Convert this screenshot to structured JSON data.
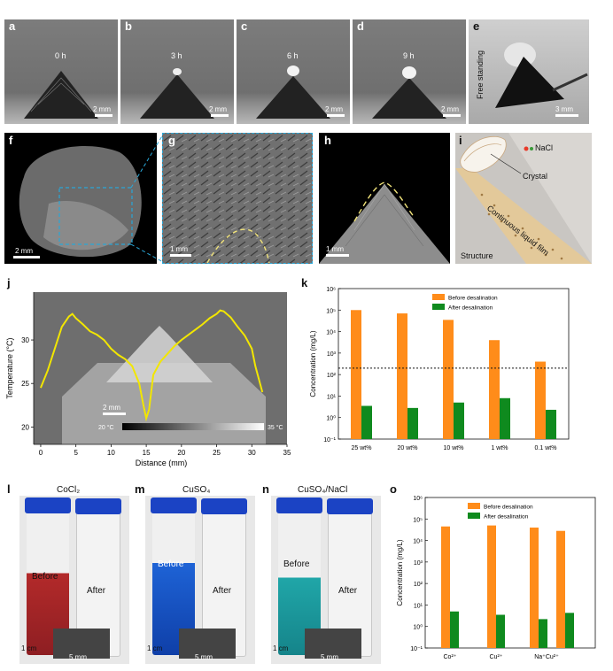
{
  "labels": {
    "a": "a",
    "b": "b",
    "c": "c",
    "d": "d",
    "e": "e",
    "f": "f",
    "g": "g",
    "h": "h",
    "i": "i",
    "j": "j",
    "k": "k",
    "l": "l",
    "m": "m",
    "n": "n",
    "o": "o"
  },
  "row1": {
    "times": [
      "0 h",
      "3 h",
      "6 h",
      "9 h"
    ],
    "scale": "2 mm",
    "e_side": "Free standing",
    "e_scale": "3 mm"
  },
  "row2": {
    "f_scale": "2 mm",
    "g_scale": "1 mm",
    "h_scale": "1 mm",
    "i_nacl": "NaCl",
    "i_crystal": "Crystal",
    "i_film": "Continuous liquid film",
    "i_structure": "Structure"
  },
  "panel_j": {
    "ylabel": "Temperature (°C)",
    "xlabel": "Distance (mm)",
    "xticks": [
      "0",
      "5",
      "10",
      "15",
      "20",
      "25",
      "30",
      "35"
    ],
    "yticks": [
      "20",
      "25",
      "30"
    ],
    "scale": "2 mm",
    "cbar_min": "20 °C",
    "cbar_max": "35 °C",
    "colors": {
      "curve": "#f2e600"
    }
  },
  "chart_data": [
    {
      "panel": "j",
      "type": "line",
      "xlabel": "Distance (mm)",
      "ylabel": "Temperature (°C)",
      "xlim": [
        -1,
        35
      ],
      "ylim": [
        18,
        35.5
      ],
      "x": [
        0,
        1,
        2,
        3,
        4,
        4.5,
        5,
        6,
        7,
        8,
        9,
        10,
        11,
        12,
        13,
        14,
        14.6,
        15,
        15.4,
        16,
        17,
        18,
        19,
        20,
        21,
        22,
        23,
        24,
        25,
        25.5,
        26,
        27,
        28,
        29,
        30,
        30.5,
        31.5
      ],
      "y": [
        24.5,
        26.5,
        29.0,
        31.5,
        32.7,
        33.0,
        32.5,
        31.8,
        31.0,
        30.6,
        30.0,
        29.0,
        28.3,
        27.8,
        27.0,
        25.0,
        22.5,
        21.0,
        22.0,
        26.0,
        27.5,
        28.4,
        29.3,
        30.0,
        30.6,
        31.2,
        31.8,
        32.5,
        33.0,
        33.4,
        33.3,
        32.6,
        31.5,
        30.5,
        29.0,
        27.0,
        24.0
      ]
    },
    {
      "panel": "k",
      "type": "bar",
      "xlabel": "",
      "ylabel": "Concentration (mg/L)",
      "log_scale": true,
      "ylim": [
        0.1,
        1000000
      ],
      "yticks": [
        "10⁻¹",
        "10⁰",
        "10¹",
        "10²",
        "10³",
        "10⁴",
        "10⁵",
        "10⁶"
      ],
      "categories": [
        "25 wt%",
        "20 wt%",
        "10 wt%",
        "1 wt%",
        "0.1 wt%"
      ],
      "series": [
        {
          "name": "Before desalination",
          "color": "#ff8c1a",
          "values": [
            100000,
            70000,
            35000,
            4000,
            400
          ]
        },
        {
          "name": "After desalination",
          "color": "#0f8a1e",
          "values": [
            3.5,
            2.8,
            5,
            8,
            2.3
          ]
        }
      ],
      "reference_line": 200,
      "legend": "top-center"
    },
    {
      "panel": "o",
      "type": "bar",
      "xlabel": "",
      "ylabel": "Concentration (mg/L)",
      "log_scale": true,
      "ylim": [
        0.1,
        1000000
      ],
      "yticks": [
        "10⁻¹",
        "10⁰",
        "10¹",
        "10²",
        "10³",
        "10⁴",
        "10⁵",
        "10⁶"
      ],
      "categories": [
        "Co²⁺",
        "Cu²⁺",
        "Na⁺",
        "Cu²⁺"
      ],
      "category_groups": [
        "Co²⁺",
        "Cu²⁺",
        "Na⁺Cu²⁺"
      ],
      "series": [
        {
          "name": "Before desalination",
          "color": "#ff8c1a",
          "values": [
            45000,
            50000,
            40000,
            28000
          ]
        },
        {
          "name": "After desalination",
          "color": "#0f8a1e",
          "values": [
            5,
            3.5,
            2.2,
            4.3
          ]
        }
      ],
      "legend": "top-center"
    }
  ],
  "row4": {
    "l_title": "CoCl₂",
    "m_title": "CuSO₄",
    "n_title": "CuSO₄/NaCl",
    "before": "Before",
    "after": "After",
    "scale_cm": "1 cm",
    "scale_mm": "5 mm"
  }
}
